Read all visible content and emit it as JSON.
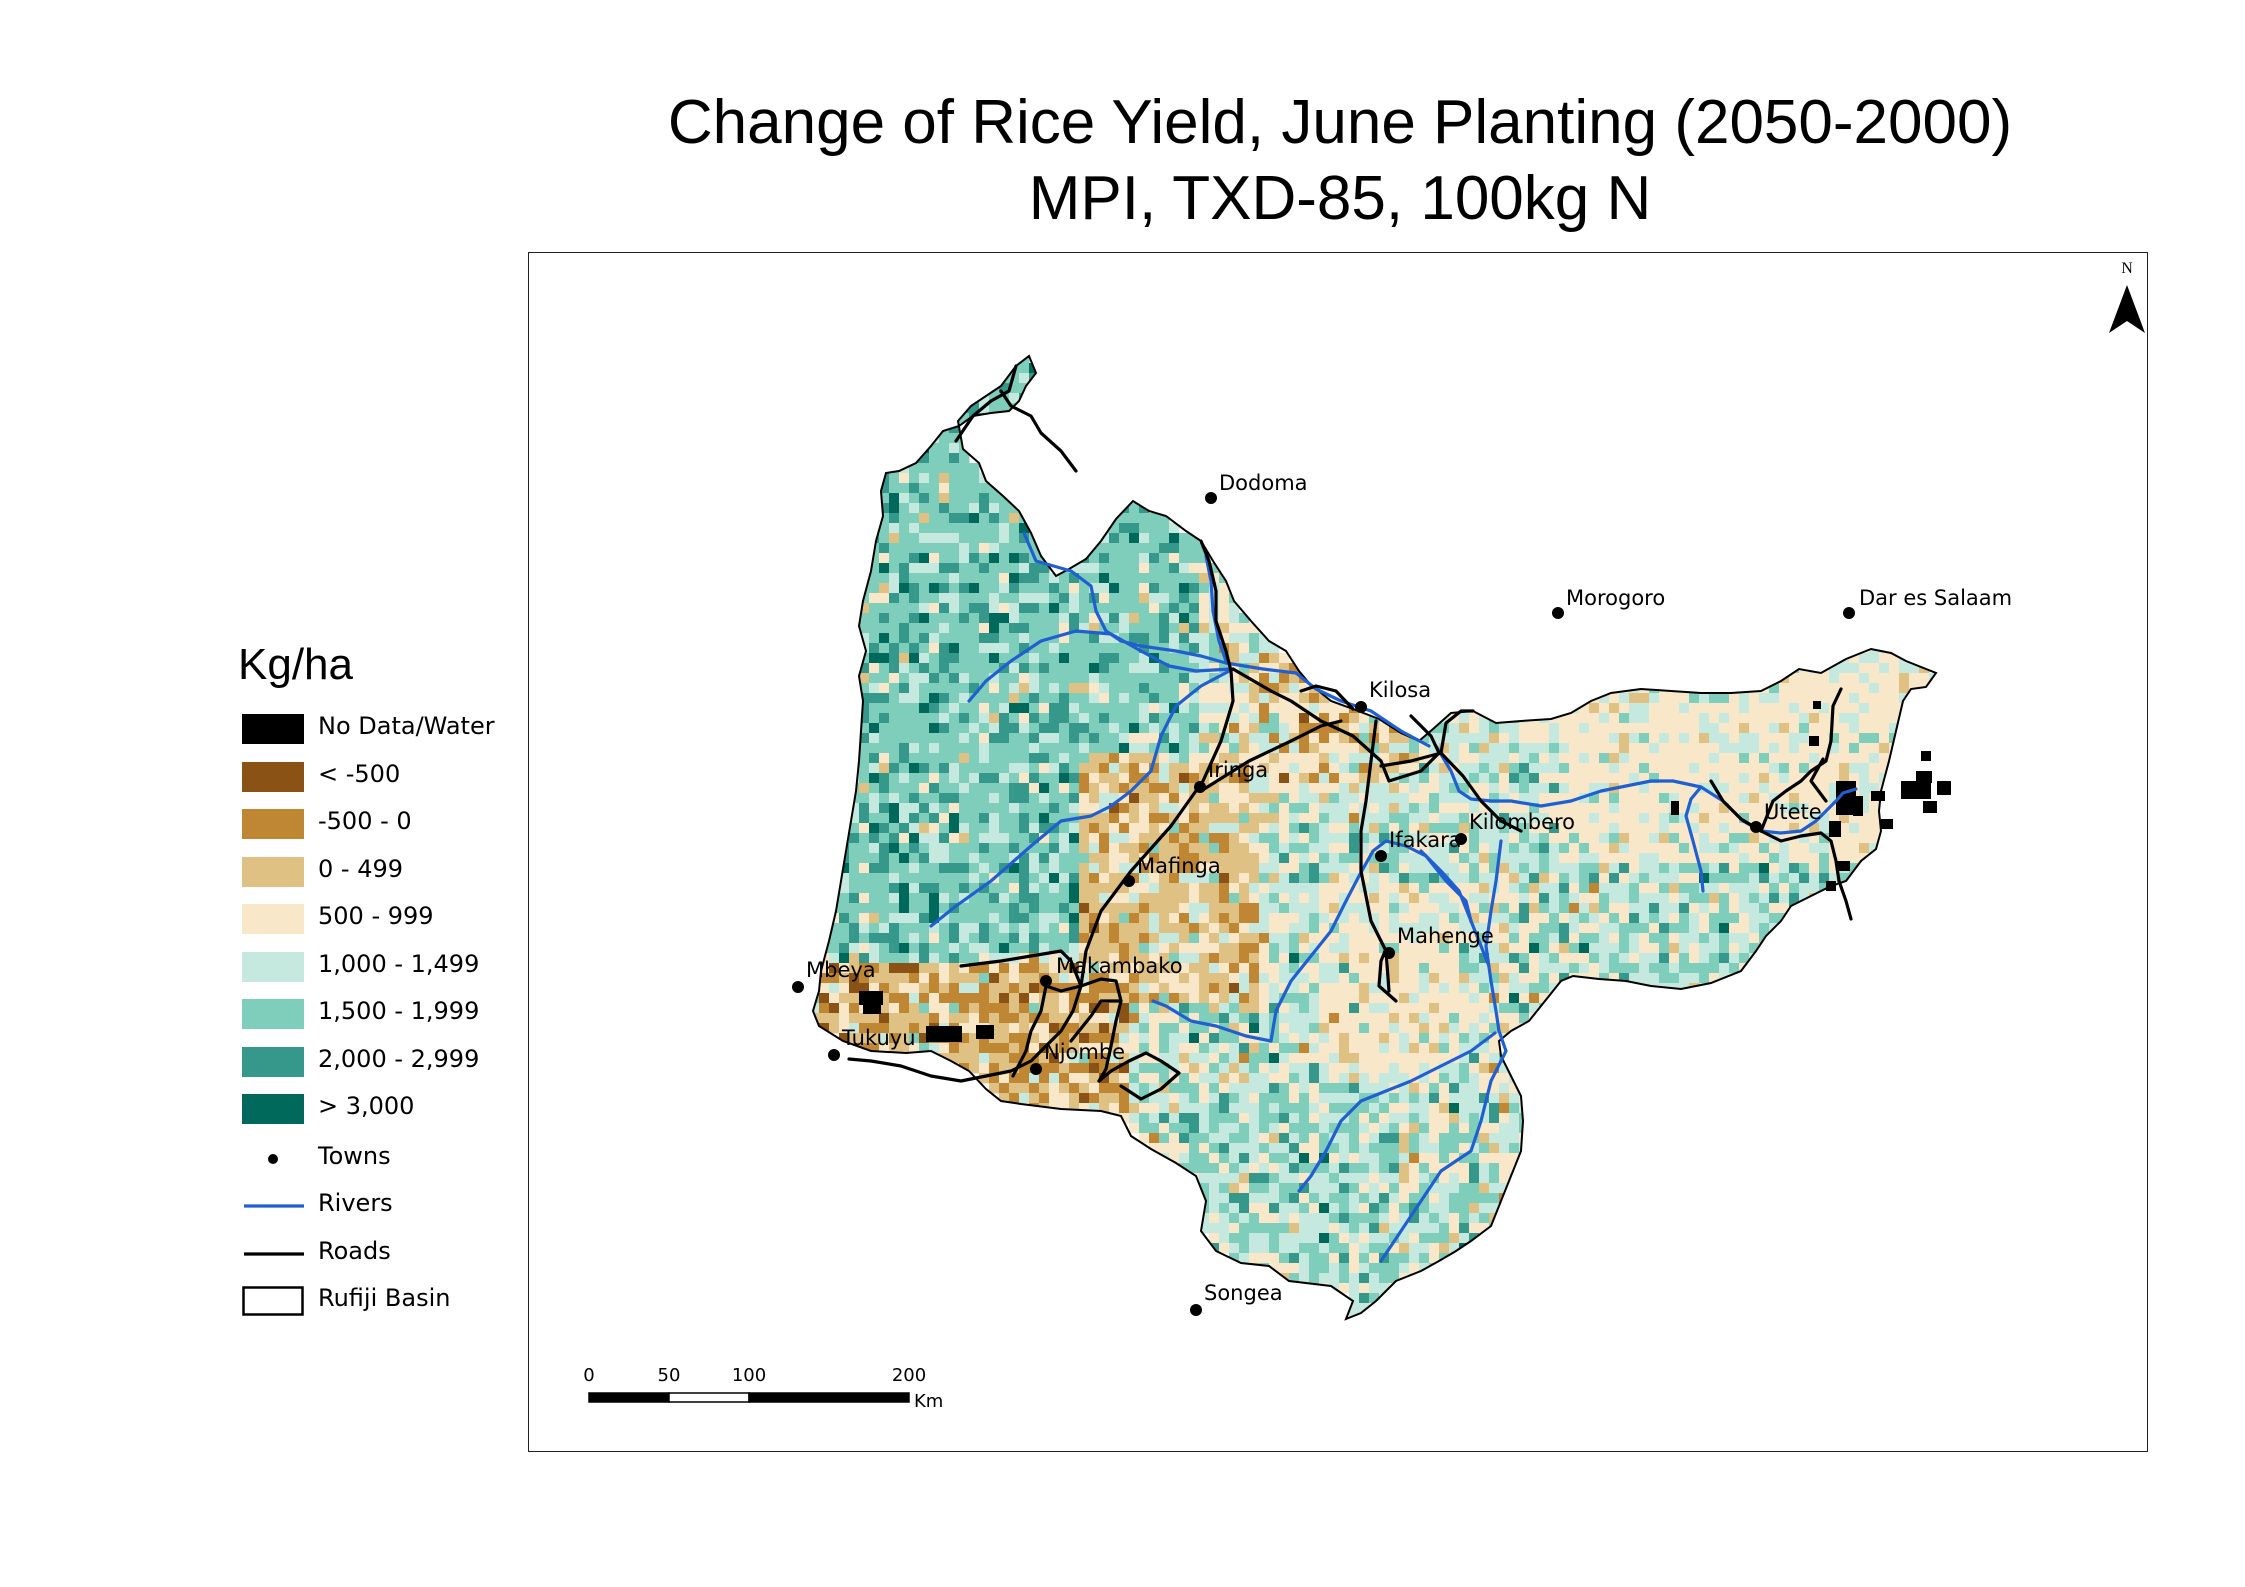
{
  "title": {
    "line1": "Change of Rice Yield, June Planting (2050-2000)",
    "line2": "MPI, TXD-85, 100kg N"
  },
  "legend": {
    "title": "Kg/ha",
    "classes": [
      {
        "label": "No Data/Water",
        "color": "#000000"
      },
      {
        "label": "< -500",
        "color": "#8a5214"
      },
      {
        "label": "-500 - 0",
        "color": "#bf8733"
      },
      {
        "label": "0 - 499",
        "color": "#dfc183"
      },
      {
        "label": "500 - 999",
        "color": "#f8e7c8"
      },
      {
        "label": "1,000 - 1,499",
        "color": "#c6e9df"
      },
      {
        "label": "1,500 - 1,999",
        "color": "#7fcdbb"
      },
      {
        "label": "2,000 - 2,999",
        "color": "#36988a"
      },
      {
        "label": "> 3,000",
        "color": "#00695b"
      }
    ],
    "symbols": [
      {
        "label": "Towns",
        "kind": "point"
      },
      {
        "label": "Rivers",
        "kind": "line",
        "color": "#1f5fcf"
      },
      {
        "label": "Roads",
        "kind": "line",
        "color": "#000000"
      },
      {
        "label": "Rufiji Basin",
        "kind": "polygon"
      }
    ]
  },
  "north_arrow": {
    "label": "N"
  },
  "scale_bar": {
    "ticks": [
      "0",
      "50",
      "100",
      "200"
    ],
    "unit": "Km"
  },
  "towns": [
    "Dodoma",
    "Morogoro",
    "Dar es Salaam",
    "Kilosa",
    "Iringa",
    "Kilombero",
    "Ifakara",
    "Utete",
    "Mafinga",
    "Mahenge",
    "Makambako",
    "Mbeya",
    "Tukuyu",
    "Njombe",
    "Songea"
  ],
  "colors": {
    "rivers": "#1f5fcf",
    "roads": "#000000",
    "towns": "#000000"
  }
}
